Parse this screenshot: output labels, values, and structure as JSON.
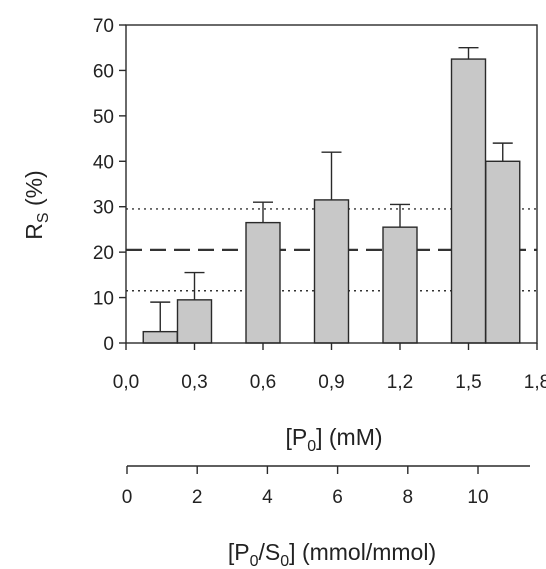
{
  "chart_data": {
    "type": "bar",
    "ylabel_main": "R",
    "ylabel_sub": "S",
    "ylabel_rest": " (%)",
    "xlabel_parts": [
      "[P",
      "0",
      "] (mM)"
    ],
    "x2label_parts": [
      "[P",
      "0",
      "/S",
      "0",
      "] (mmol/mmol)"
    ],
    "ylim": [
      0,
      70
    ],
    "yticks": [
      0,
      10,
      20,
      30,
      40,
      50,
      60,
      70
    ],
    "xlim": [
      0.0,
      1.8
    ],
    "xticks": [
      0.0,
      0.3,
      0.6,
      0.9,
      1.2,
      1.5,
      1.8
    ],
    "xtick_labels": [
      "0,0",
      "0,3",
      "0,6",
      "0,9",
      "1,2",
      "1,5",
      "1,8"
    ],
    "x2_ticks": [
      0,
      2,
      4,
      6,
      8,
      10
    ],
    "bars": [
      {
        "x": 0.15,
        "value": 2.5,
        "error": 6.5
      },
      {
        "x": 0.3,
        "value": 9.5,
        "error": 6.0
      },
      {
        "x": 0.6,
        "value": 26.5,
        "error": 4.5
      },
      {
        "x": 0.9,
        "value": 31.5,
        "error": 10.5
      },
      {
        "x": 1.2,
        "value": 25.5,
        "error": 5.0
      },
      {
        "x": 1.5,
        "value": 62.5,
        "error": 2.5
      },
      {
        "x": 1.65,
        "value": 40.0,
        "error": 4.0
      }
    ],
    "reference_lines": [
      {
        "y": 20.5,
        "style": "dashed"
      },
      {
        "y": 29.5,
        "style": "dotted"
      },
      {
        "y": 11.5,
        "style": "dotted"
      }
    ],
    "bar_color": "#c8c8c8",
    "grid": false
  }
}
